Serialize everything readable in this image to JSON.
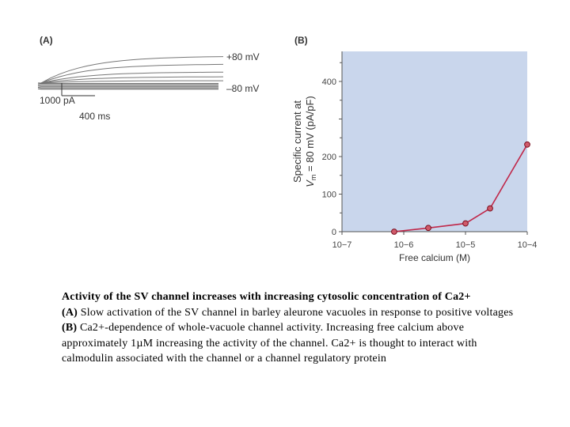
{
  "chart_data": [
    {
      "panel_label": "(A)",
      "type": "line",
      "trace_labels": [
        "+80 mV",
        "–80 mV"
      ],
      "scale_bar_current": "1000 pA",
      "scale_bar_time": "400 ms"
    },
    {
      "panel_label": "(B)",
      "type": "line",
      "xscale": "log",
      "xlim": [
        1e-07,
        0.0001
      ],
      "ylim": [
        0,
        480
      ],
      "x_tick_labels": [
        "10−7",
        "10−6",
        "10−5",
        "10−4"
      ],
      "y_tick_values": [
        0,
        100,
        200,
        300,
        400
      ],
      "y_tick_labels": [
        "0",
        "100",
        "200",
        "",
        "400"
      ],
      "xlabel": "Free calcium (M)",
      "ylabel_line1": "Specific current at",
      "ylabel_line2": "V",
      "ylabel_sub": "m",
      "ylabel_rest": " = 80 mV  (pA/pF)",
      "grid": false,
      "colors": {
        "background": "#c9d6ec",
        "line": "#c0284a",
        "marker_fill": "#d05a6a",
        "marker_edge": "#7a1020"
      },
      "series": [
        {
          "x": [
            7e-07,
            2.5e-06,
            1e-05,
            2.5e-05,
            0.0001
          ],
          "y": [
            0,
            10,
            22,
            62,
            232
          ]
        }
      ]
    }
  ],
  "caption": {
    "title": "Activity of the SV channel increases with increasing cytosolic concentration of Ca2+",
    "a_tag": "(A)",
    "a_text": "Slow activation of the SV channel in barley aleurone vacuoles in response to positive voltages",
    "b_tag": "(B)",
    "b_text": "Ca2+-dependence of whole-vacuole channel activity. Increasing free calcium above approximately 1µM increasing the activity of the channel. Ca2+ is thought to interact with calmodulin associated with the channel or a channel regulatory protein"
  }
}
